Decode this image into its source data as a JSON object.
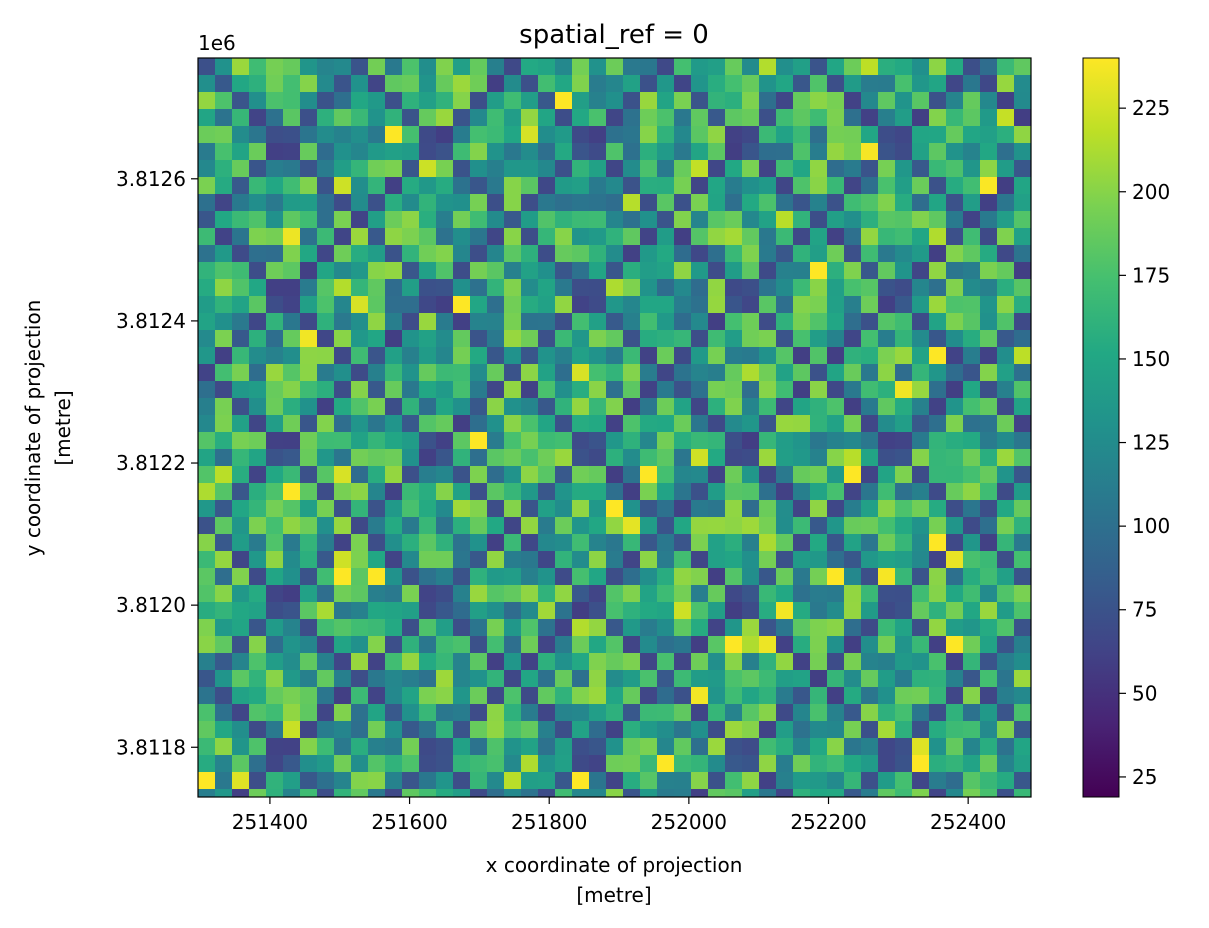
{
  "chart_data": {
    "type": "heatmap",
    "title": "spatial_ref = 0",
    "xlabel": "x coordinate of projection",
    "xlabel_unit": "[metre]",
    "ylabel": "y coordinate of projection",
    "ylabel_unit": "[metre]",
    "y_offset_text": "1e6",
    "x_ticks": [
      251400,
      251600,
      251800,
      252000,
      252200,
      252400
    ],
    "x_tick_labels": [
      "251400",
      "251600",
      "251800",
      "252000",
      "252200",
      "252400"
    ],
    "y_ticks": [
      3.8118,
      3.812,
      3.8122,
      3.8124,
      3.8126
    ],
    "y_tick_labels": [
      "3.8118",
      "3.8120",
      "3.8122",
      "3.8124",
      "3.8126"
    ],
    "xlim": [
      251297,
      252490
    ],
    "ylim": [
      3.81173,
      3.81277
    ],
    "colorbar": {
      "colormap": "viridis",
      "range": [
        19,
        240
      ],
      "ticks": [
        25,
        50,
        75,
        100,
        125,
        150,
        175,
        200,
        225
      ],
      "tick_labels": [
        "25",
        "50",
        "75",
        "100",
        "125",
        "150",
        "175",
        "200",
        "225"
      ]
    },
    "grid": false
  }
}
